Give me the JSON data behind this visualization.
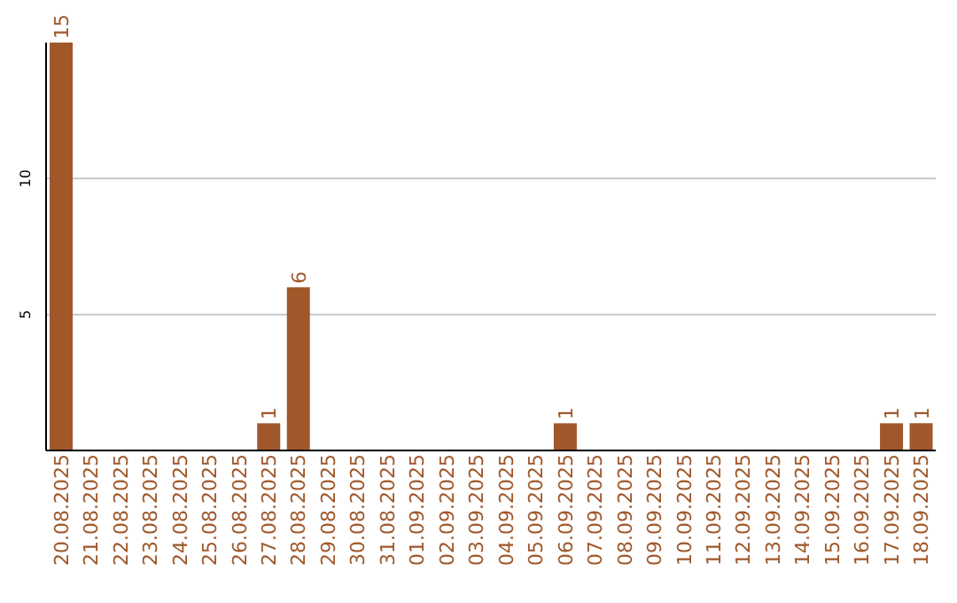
{
  "chart_data": {
    "type": "bar",
    "categories": [
      "20.08.2025",
      "21.08.2025",
      "22.08.2025",
      "23.08.2025",
      "24.08.2025",
      "25.08.2025",
      "26.08.2025",
      "27.08.2025",
      "28.08.2025",
      "29.08.2025",
      "30.08.2025",
      "31.08.2025",
      "01.09.2025",
      "02.09.2025",
      "03.09.2025",
      "04.09.2025",
      "05.09.2025",
      "06.09.2025",
      "07.09.2025",
      "08.09.2025",
      "09.09.2025",
      "10.09.2025",
      "11.09.2025",
      "12.09.2025",
      "13.09.2025",
      "14.09.2025",
      "15.09.2025",
      "16.09.2025",
      "17.09.2025",
      "18.09.2025"
    ],
    "values": [
      15,
      0,
      0,
      0,
      0,
      0,
      0,
      1,
      6,
      0,
      0,
      0,
      0,
      0,
      0,
      0,
      0,
      1,
      0,
      0,
      0,
      0,
      0,
      0,
      0,
      0,
      0,
      0,
      1,
      1
    ],
    "value_labels": [
      "15",
      null,
      null,
      null,
      null,
      null,
      null,
      "1",
      "6",
      null,
      null,
      null,
      null,
      null,
      null,
      null,
      null,
      "1",
      null,
      null,
      null,
      null,
      null,
      null,
      null,
      null,
      null,
      null,
      "1",
      "1"
    ],
    "color": "#a0582b",
    "ylim": [
      0,
      15
    ],
    "yticks": [
      5,
      10
    ],
    "grid": "y"
  }
}
